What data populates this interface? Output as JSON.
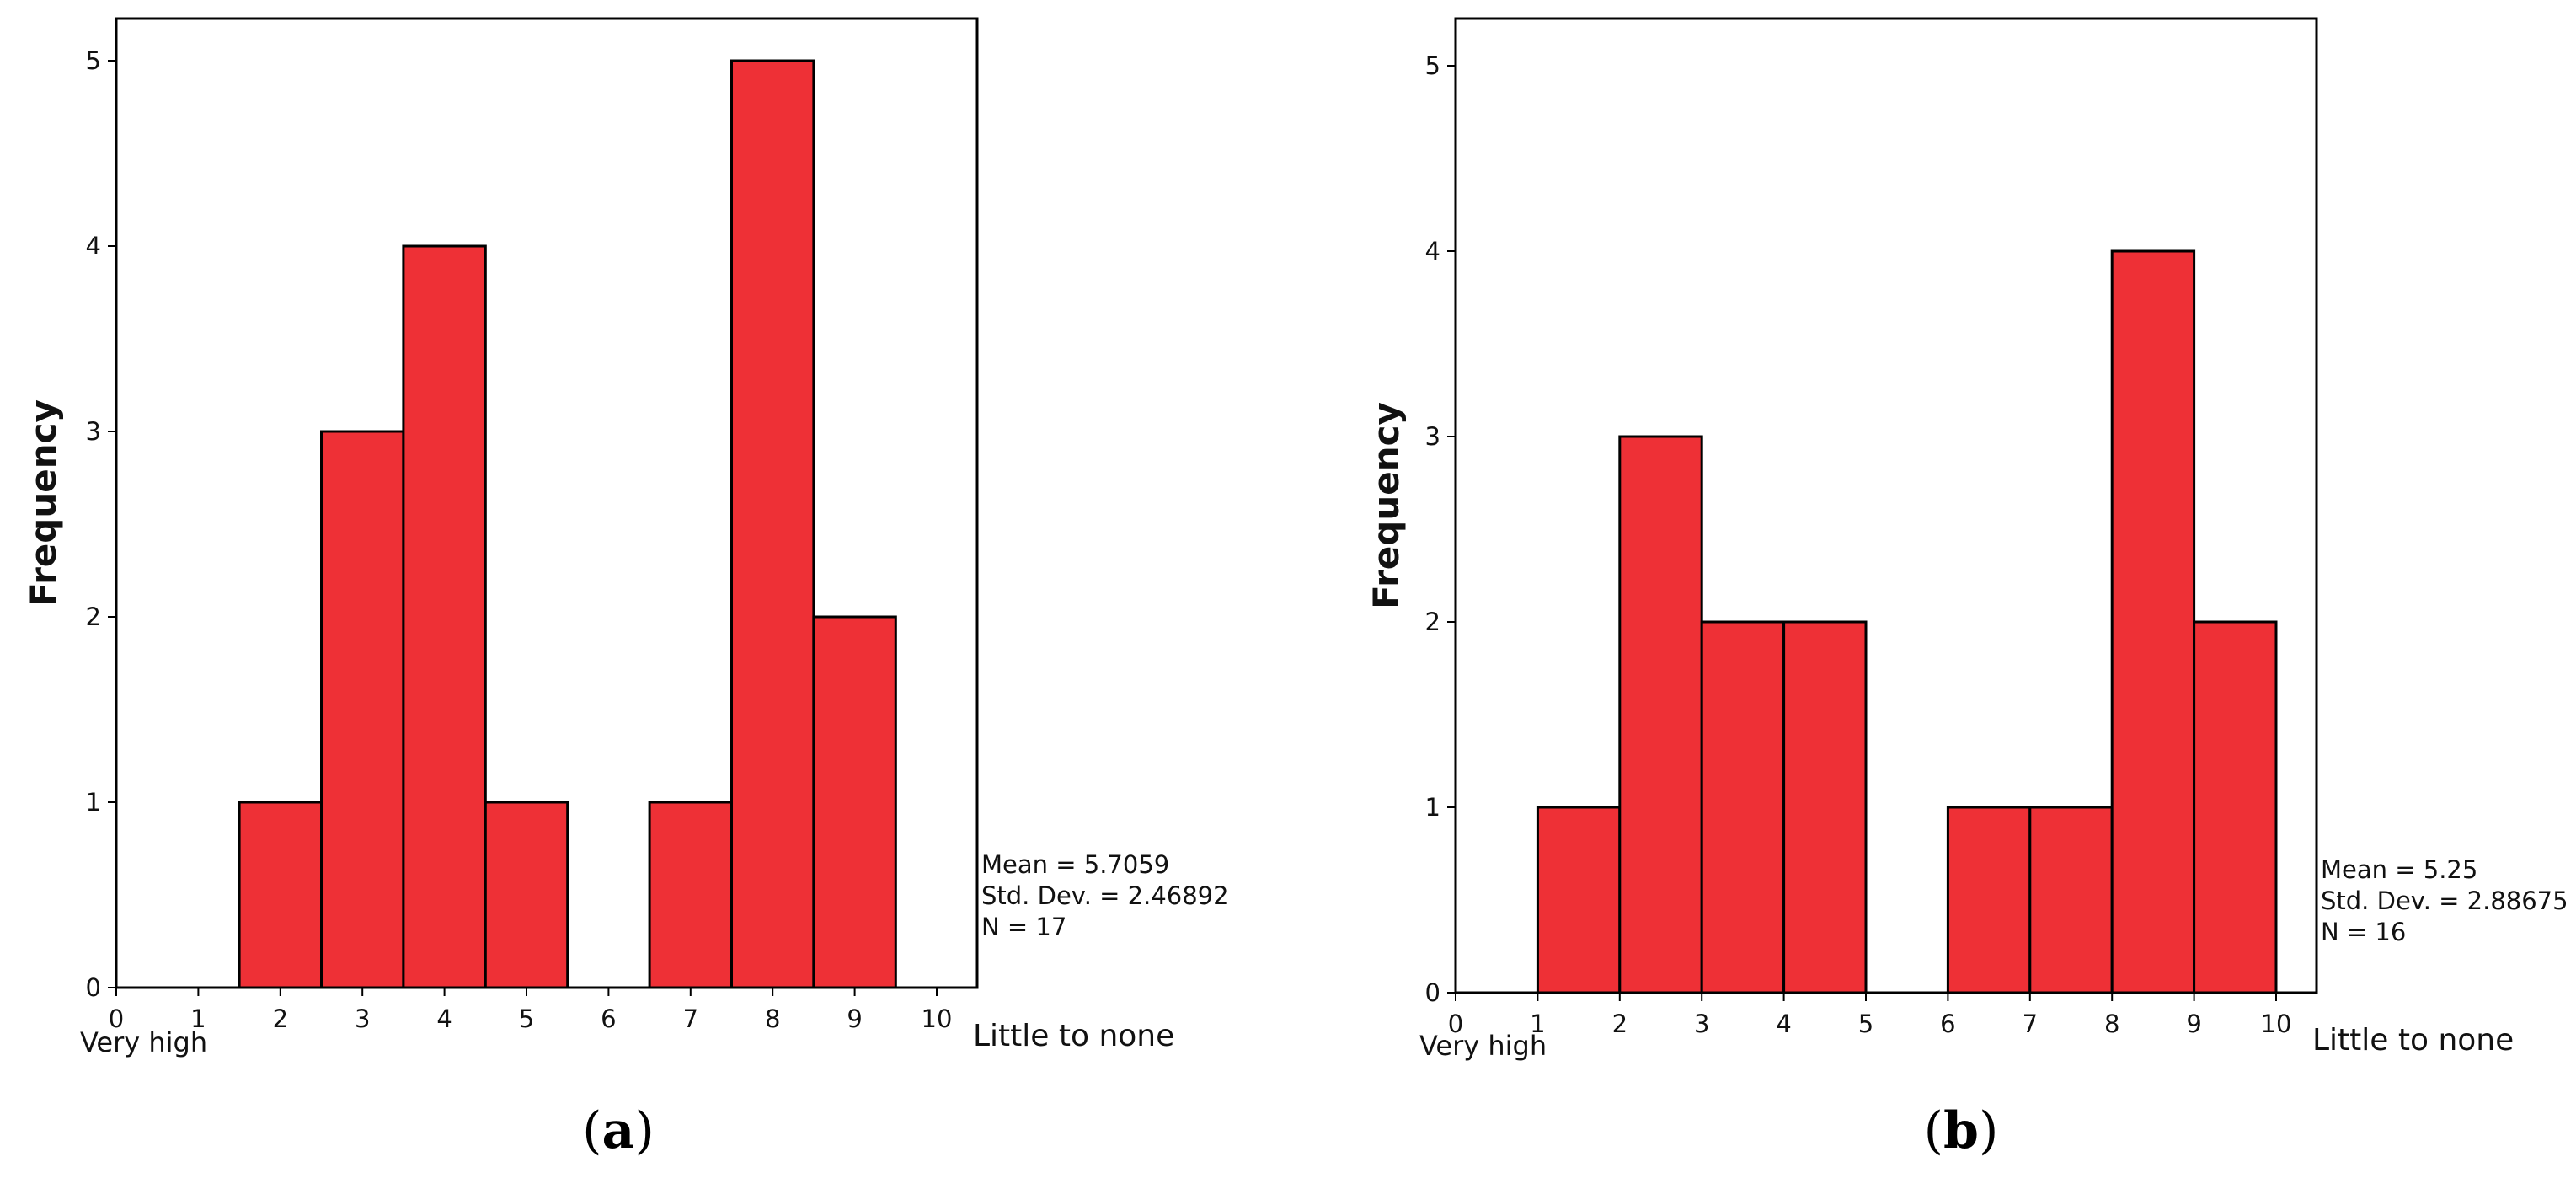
{
  "colors": {
    "bar": "#ee3036",
    "axis": "#000000"
  },
  "chart_data": [
    {
      "type": "bar",
      "panel_label": {
        "open": "(",
        "letter": "a",
        "close": ")"
      },
      "ylabel": "Frequency",
      "x_left_label": "Very high",
      "x_right_label": "Little to none",
      "xlim": [
        0,
        10
      ],
      "ylim": [
        0,
        5.5
      ],
      "x_ticks": [
        0,
        1,
        2,
        3,
        4,
        5,
        6,
        7,
        8,
        9,
        10
      ],
      "x_tick_labels": [
        "0",
        "1",
        "2",
        "3",
        "4",
        "5",
        "6",
        "7",
        "8",
        "9",
        "10"
      ],
      "x_tick_labels_bottom": [
        "Very high"
      ],
      "y_ticks": [
        0,
        1,
        2,
        3,
        4,
        5
      ],
      "y_tick_labels": [
        "0",
        "1",
        "2",
        "3",
        "4",
        "5"
      ],
      "bins": [
        {
          "from": 1.5,
          "to": 2.5,
          "value": 1
        },
        {
          "from": 2.5,
          "to": 3.5,
          "value": 3
        },
        {
          "from": 3.5,
          "to": 4.5,
          "value": 4
        },
        {
          "from": 4.5,
          "to": 5.5,
          "value": 1
        },
        {
          "from": 6.5,
          "to": 7.5,
          "value": 1
        },
        {
          "from": 7.5,
          "to": 8.5,
          "value": 5
        },
        {
          "from": 8.5,
          "to": 9.5,
          "value": 2
        }
      ],
      "stats": [
        "Mean = 5.7059",
        "Std. Dev. = 2.46892",
        "N = 17"
      ]
    },
    {
      "type": "bar",
      "panel_label": {
        "open": "(",
        "letter": "b",
        "close": ")"
      },
      "ylabel": "Frequency",
      "x_left_label": "Very high",
      "x_right_label": "Little to none",
      "xlim": [
        0,
        10.5
      ],
      "ylim": [
        0,
        5.5
      ],
      "x_ticks": [
        0,
        1,
        2,
        3,
        4,
        5,
        6,
        7,
        8,
        9,
        10
      ],
      "x_tick_labels": [
        "0",
        "1",
        "2",
        "3",
        "4",
        "5",
        "6",
        "7",
        "8",
        "9",
        "10"
      ],
      "y_ticks": [
        0,
        1,
        2,
        3,
        4,
        5
      ],
      "y_tick_labels": [
        "0",
        "1",
        "2",
        "3",
        "4",
        "5"
      ],
      "bins": [
        {
          "from": 1,
          "to": 2,
          "value": 1
        },
        {
          "from": 2,
          "to": 3,
          "value": 3
        },
        {
          "from": 3,
          "to": 4,
          "value": 2
        },
        {
          "from": 4,
          "to": 5,
          "value": 2
        },
        {
          "from": 6,
          "to": 7,
          "value": 1
        },
        {
          "from": 7,
          "to": 8,
          "value": 1
        },
        {
          "from": 8,
          "to": 9,
          "value": 4
        },
        {
          "from": 9,
          "to": 10,
          "value": 2
        }
      ],
      "stats": [
        "Mean = 5.25",
        "Std. Dev. = 2.88675",
        "N = 16"
      ]
    }
  ]
}
